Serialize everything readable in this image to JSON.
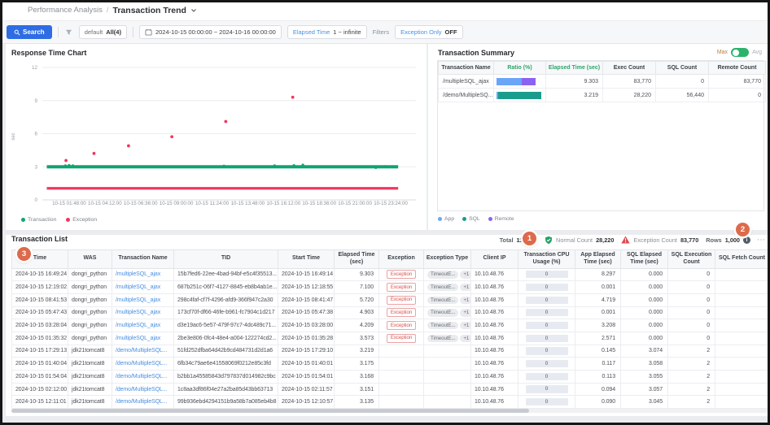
{
  "colors": {
    "app": "#6aa5f8",
    "sql": "#1a9c8d",
    "remote": "#8a63f2",
    "transaction_green": "#0fa470",
    "exception_red": "#f2365f",
    "link_blue": "#4a90e2",
    "accent_blue": "#2e6ce4",
    "badge_red": "#d9534f",
    "annotation_orange": "#dd6a4c",
    "normal_green": "#21a366",
    "warn_red": "#e0484f"
  },
  "breadcrumb": {
    "section": "Performance Analysis",
    "separator": "/",
    "page": "Transaction Trend"
  },
  "toolbar": {
    "search_label": "Search",
    "profile_name": "default",
    "profile_scope": "All(4)",
    "date_range": "2024-10-15 00:00:00 ~ 2024-10-16 00:00:00",
    "elapsed_time_label": "Elapsed Time",
    "elapsed_time_value": "1 ~ infinite",
    "filters_label": "Filters",
    "exception_only_label": "Exception Only",
    "exception_only_value": "OFF"
  },
  "chart_data": {
    "type": "scatter",
    "title": "Response Time Chart",
    "ylabel": "sec",
    "ylim": [
      0,
      12
    ],
    "yticks": [
      12,
      9,
      6,
      3,
      0
    ],
    "xlim_hours": [
      0,
      24
    ],
    "grid": "horizontal",
    "xticks": [
      {
        "hour": 1.8,
        "label": "10-15 01:48:00"
      },
      {
        "hour": 4.2,
        "label": "10-15 04:12:00"
      },
      {
        "hour": 6.6,
        "label": "10-15 06:36:00"
      },
      {
        "hour": 9.0,
        "label": "10-15 09:00:00"
      },
      {
        "hour": 11.4,
        "label": "10-15 11:24:00"
      },
      {
        "hour": 13.8,
        "label": "10-15 13:48:00"
      },
      {
        "hour": 16.2,
        "label": "10-15 16:12:00"
      },
      {
        "hour": 18.6,
        "label": "10-15 18:36:00"
      },
      {
        "hour": 21.0,
        "label": "10-15 21:00:00"
      },
      {
        "hour": 23.4,
        "label": "10-15 23:24:00"
      }
    ],
    "series": [
      {
        "name": "Transaction",
        "kind": "band",
        "color_key": "transaction_green",
        "y": 3.0,
        "x_start": 0.3,
        "x_end": 23.9
      },
      {
        "name": "Exception",
        "kind": "band",
        "color_key": "exception_red",
        "y": 1.05,
        "x_start": 0.3,
        "x_end": 23.9
      },
      {
        "name": "Transaction outliers",
        "kind": "points",
        "color_key": "transaction_green",
        "points": [
          [
            1.55,
            3.1
          ],
          [
            1.8,
            3.13
          ],
          [
            2.05,
            3.1
          ],
          [
            12.2,
            3.08
          ],
          [
            15.6,
            3.1
          ],
          [
            16.9,
            3.12
          ],
          [
            17.5,
            3.17
          ],
          [
            22.4,
            2.92
          ],
          [
            23.0,
            3.03
          ]
        ]
      },
      {
        "name": "Exception outliers",
        "kind": "points",
        "color_key": "exception_red",
        "points": [
          [
            1.59,
            3.57
          ],
          [
            3.47,
            4.21
          ],
          [
            5.79,
            4.9
          ],
          [
            8.7,
            5.72
          ],
          [
            12.32,
            7.1
          ],
          [
            16.82,
            9.3
          ]
        ]
      }
    ],
    "legend": [
      {
        "label": "Transaction",
        "color_key": "transaction_green"
      },
      {
        "label": "Exception",
        "color_key": "exception_red"
      }
    ],
    "legend_position": "bottom-left"
  },
  "transaction_summary": {
    "title": "Transaction Summary",
    "toggle_left": "Max",
    "toggle_right": "Avg",
    "toggle_selected": "Max",
    "columns": [
      "Transaction Name",
      "Ratio (%)",
      "Elapsed Time (sec)",
      "Exec Count",
      "SQL Count",
      "Remote Count"
    ],
    "rows": [
      {
        "name": "/multipleSQL_ajax",
        "ratio_segments": [
          {
            "kind": "app",
            "pct": 54
          },
          {
            "kind": "remote",
            "pct": 31
          }
        ],
        "elapsed": "9.303",
        "exec_count": "83,770",
        "sql_count": "0",
        "remote_count": "83,770"
      },
      {
        "name": "/demo/MultipleSQ...",
        "ratio_segments": [
          {
            "kind": "app",
            "pct": 3
          },
          {
            "kind": "sql",
            "pct": 93
          }
        ],
        "elapsed": "3.219",
        "exec_count": "28,220",
        "sql_count": "56,440",
        "remote_count": "0"
      }
    ],
    "legend": [
      {
        "label": "App",
        "color_key": "app"
      },
      {
        "label": "SQL",
        "color_key": "sql"
      },
      {
        "label": "Remote",
        "color_key": "remote"
      }
    ]
  },
  "transaction_list": {
    "title": "Transaction List",
    "stats": {
      "total_label": "Total",
      "total_value": "111,990",
      "normal_label": "Normal Count",
      "normal_value": "28,220",
      "exception_label": "Exception Count",
      "exception_value": "83,770",
      "rows_label": "Rows",
      "rows_value": "1,000",
      "more_menu": "⋯"
    },
    "annotation_badges": [
      "1",
      "2",
      "3"
    ],
    "exception_badge_label": "Exception",
    "columns": [
      "Time",
      "WAS",
      "Transaction Name",
      "TID",
      "Start Time",
      "Elapsed Time (sec)",
      "Exception",
      "Exception Type",
      "Client IP",
      "Transaction CPU Usage (%)",
      "App Elapsed Time (sec)",
      "SQL Elapsed Time (sec)",
      "SQL Execution Count",
      "SQL Fetch Count"
    ],
    "rows": [
      {
        "time": "2024-10-15 16:49:24",
        "was": "dongri_python",
        "name": "/multipleSQL_ajax",
        "tid": "15b7fed6-22ee-4bad-94bf-e5c4f35513...",
        "start": "2024-10-15 16:49:14",
        "elapsed": "9.303",
        "exception": true,
        "exc_types": [
          "TimeoutE...",
          "+1"
        ],
        "ip": "10.10.48.76",
        "cpu": "0",
        "app_elapsed": "8.297",
        "sql_elapsed": "0.000",
        "sql_exec": "0",
        "sql_fetch": ""
      },
      {
        "time": "2024-10-15 12:19:02",
        "was": "dongri_python",
        "name": "/multipleSQL_ajax",
        "tid": "687b251c-06f7-4127-8845-eb8b4ab1e...",
        "start": "2024-10-15 12:18:55",
        "elapsed": "7.100",
        "exception": true,
        "exc_types": [
          "TimeoutE...",
          "+1"
        ],
        "ip": "10.10.48.76",
        "cpu": "0",
        "app_elapsed": "0.001",
        "sql_elapsed": "0.000",
        "sql_exec": "0",
        "sql_fetch": ""
      },
      {
        "time": "2024-10-15 08:41:53",
        "was": "dongri_python",
        "name": "/multipleSQL_ajax",
        "tid": "298c4faf-cf7f-4296-afd9-366f947c2a30",
        "start": "2024-10-15 08:41:47",
        "elapsed": "5.720",
        "exception": true,
        "exc_types": [
          "TimeoutE...",
          "+1"
        ],
        "ip": "10.10.48.76",
        "cpu": "0",
        "app_elapsed": "4.719",
        "sql_elapsed": "0.000",
        "sql_exec": "0",
        "sql_fetch": ""
      },
      {
        "time": "2024-10-15 05:47:43",
        "was": "dongri_python",
        "name": "/multipleSQL_ajax",
        "tid": "173cf70f-df66-46fe-b961-fc7904c1d217",
        "start": "2024-10-15 05:47:38",
        "elapsed": "4.903",
        "exception": true,
        "exc_types": [
          "TimeoutE...",
          "+1"
        ],
        "ip": "10.10.48.76",
        "cpu": "0",
        "app_elapsed": "0.001",
        "sql_elapsed": "0.000",
        "sql_exec": "0",
        "sql_fetch": ""
      },
      {
        "time": "2024-10-15 03:28:04",
        "was": "dongri_python",
        "name": "/multipleSQL_ajax",
        "tid": "d3e19ac6-5e57-479f-97c7-4dc489c71...",
        "start": "2024-10-15 03:28:00",
        "elapsed": "4.209",
        "exception": true,
        "exc_types": [
          "TimeoutE...",
          "+1"
        ],
        "ip": "10.10.48.76",
        "cpu": "0",
        "app_elapsed": "3.208",
        "sql_elapsed": "0.000",
        "sql_exec": "0",
        "sql_fetch": ""
      },
      {
        "time": "2024-10-15 01:35:32",
        "was": "dongri_python",
        "name": "/multipleSQL_ajax",
        "tid": "2be3e806-0fc4-48e4-a004-122274cd2...",
        "start": "2024-10-15 01:35:28",
        "elapsed": "3.573",
        "exception": true,
        "exc_types": [
          "TimeoutE...",
          "+1"
        ],
        "ip": "10.10.48.76",
        "cpu": "0",
        "app_elapsed": "2.571",
        "sql_elapsed": "0.000",
        "sql_exec": "0",
        "sql_fetch": ""
      },
      {
        "time": "2024-10-15 17:29:13",
        "was": "jdk21tomcat8",
        "name": "/demo/MultipleSQL...",
        "tid": "51fd252dfba64d42b9cd484731d2d1a6",
        "start": "2024-10-15 17:29:10",
        "elapsed": "3.219",
        "exception": false,
        "exc_types": [],
        "ip": "10.10.48.76",
        "cpu": "0",
        "app_elapsed": "0.145",
        "sql_elapsed": "3.074",
        "sql_exec": "2",
        "sql_fetch": ""
      },
      {
        "time": "2024-10-15 01:40:04",
        "was": "jdk21tomcat8",
        "name": "/demo/MultipleSQL...",
        "tid": "6fb34c79ae6e41558069f0212e85c3fd",
        "start": "2024-10-15 01:40:01",
        "elapsed": "3.175",
        "exception": false,
        "exc_types": [],
        "ip": "10.10.48.76",
        "cpu": "0",
        "app_elapsed": "0.117",
        "sql_elapsed": "3.058",
        "sql_exec": "2",
        "sql_fetch": ""
      },
      {
        "time": "2024-10-15 01:54:04",
        "was": "jdk21tomcat8",
        "name": "/demo/MultipleSQL...",
        "tid": "b2bb1a45585843d797837d014982c9bc",
        "start": "2024-10-15 01:54:01",
        "elapsed": "3.168",
        "exception": false,
        "exc_types": [],
        "ip": "10.10.48.76",
        "cpu": "0",
        "app_elapsed": "0.113",
        "sql_elapsed": "3.055",
        "sql_exec": "2",
        "sql_fetch": ""
      },
      {
        "time": "2024-10-15 02:12:00",
        "was": "jdk21tomcat8",
        "name": "/demo/MultipleSQL...",
        "tid": "1c8aa3df86f04e27a2ba85d43bb63713",
        "start": "2024-10-15 02:11:57",
        "elapsed": "3.151",
        "exception": false,
        "exc_types": [],
        "ip": "10.10.48.76",
        "cpu": "0",
        "app_elapsed": "0.094",
        "sql_elapsed": "3.057",
        "sql_exec": "2",
        "sql_fetch": ""
      },
      {
        "time": "2024-10-15 12:11:01",
        "was": "jdk21tomcat8",
        "name": "/demo/MultipleSQL...",
        "tid": "99b936ebd4294151b9a58b7a085eb4b8",
        "start": "2024-10-15 12:10:57",
        "elapsed": "3.135",
        "exception": false,
        "exc_types": [],
        "ip": "10.10.48.76",
        "cpu": "0",
        "app_elapsed": "0.090",
        "sql_elapsed": "3.045",
        "sql_exec": "2",
        "sql_fetch": ""
      }
    ]
  }
}
